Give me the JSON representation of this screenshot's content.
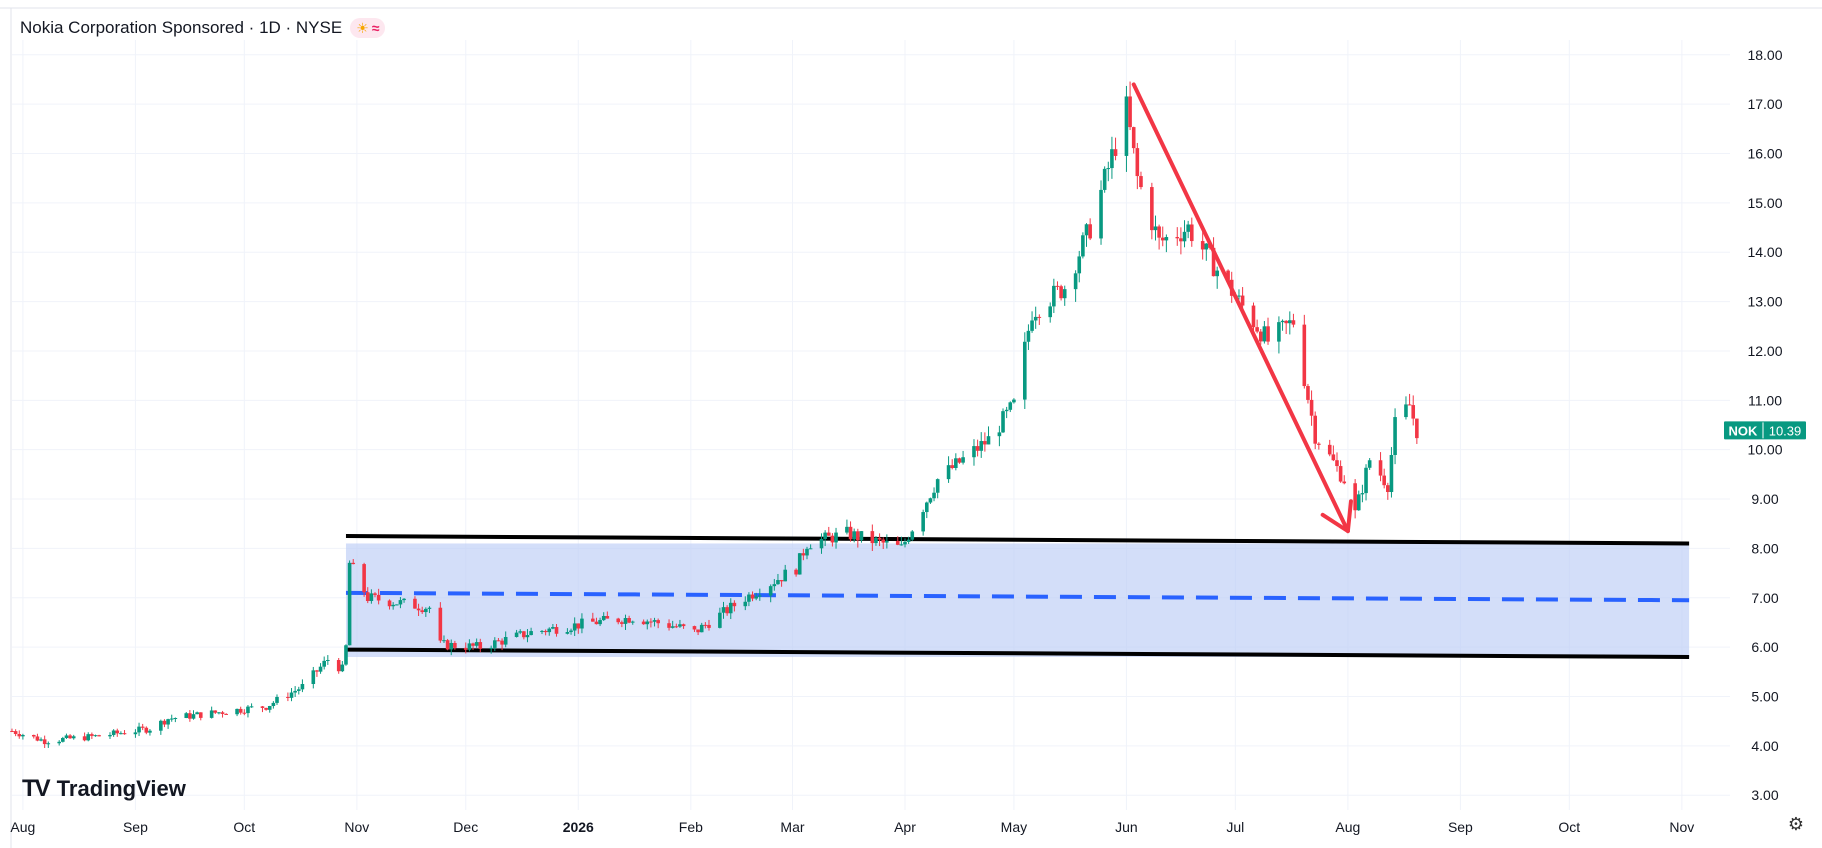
{
  "header": {
    "title": "Nokia Corporation Sponsored · 1D · NYSE",
    "icons": [
      "sun-icon",
      "wave-icon"
    ]
  },
  "branding": {
    "logo_mark": "TV",
    "logo_text": "TradingView"
  },
  "price_tag": {
    "symbol": "NOK",
    "value": "10.39",
    "color": "#089981"
  },
  "colors": {
    "up": "#089981",
    "down": "#f23645",
    "range_fill": "#bbccf6",
    "mid_line": "#2962ff",
    "arrow": "#f23645",
    "grid": "#f0f3fa",
    "bound_line": "#000000"
  },
  "chart_data": {
    "type": "candlestick",
    "title": "Nokia Corporation Sponsored · 1D · NYSE",
    "x_axis": {
      "type": "date",
      "range": [
        "2025-07-29",
        "2026-11-06"
      ],
      "tick_labels": [
        {
          "label": "Aug",
          "date": "2025-08-01"
        },
        {
          "label": "Sep",
          "date": "2025-09-01"
        },
        {
          "label": "Oct",
          "date": "2025-10-01"
        },
        {
          "label": "Nov",
          "date": "2025-11-01"
        },
        {
          "label": "Dec",
          "date": "2025-12-01"
        },
        {
          "label": "2026",
          "date": "2026-01-01",
          "bold": true
        },
        {
          "label": "Feb",
          "date": "2026-02-01"
        },
        {
          "label": "Mar",
          "date": "2026-03-01"
        },
        {
          "label": "Apr",
          "date": "2026-04-01"
        },
        {
          "label": "May",
          "date": "2026-05-01"
        },
        {
          "label": "Jun",
          "date": "2026-06-01"
        },
        {
          "label": "Jul",
          "date": "2026-07-01"
        },
        {
          "label": "Aug",
          "date": "2026-08-01"
        },
        {
          "label": "Sep",
          "date": "2026-09-01"
        },
        {
          "label": "Oct",
          "date": "2026-10-01"
        },
        {
          "label": "Nov",
          "date": "2026-11-01"
        }
      ]
    },
    "y_axis": {
      "range": [
        2.7,
        18.3
      ],
      "tick_labels": [
        "3.00",
        "4.00",
        "5.00",
        "6.00",
        "7.00",
        "8.00",
        "9.00",
        "10.00",
        "11.00",
        "12.00",
        "13.00",
        "14.00",
        "15.00",
        "16.00",
        "17.00",
        "18.00"
      ]
    },
    "grid": true,
    "last_price": 10.39,
    "series": [
      {
        "waypoints": [
          [
            "2025-07-29",
            4.3
          ],
          [
            "2025-08-07",
            4.1
          ],
          [
            "2025-08-22",
            4.2
          ],
          [
            "2025-09-05",
            4.35
          ],
          [
            "2025-09-10",
            4.55
          ],
          [
            "2025-09-26",
            4.7
          ],
          [
            "2025-10-07",
            4.8
          ],
          [
            "2025-10-17",
            5.2
          ],
          [
            "2025-10-24",
            5.75
          ],
          [
            "2025-10-28",
            5.55
          ],
          [
            "2025-10-29",
            6.0
          ],
          [
            "2025-10-30",
            7.7
          ],
          [
            "2025-11-04",
            7.0
          ],
          [
            "2025-11-21",
            6.8
          ],
          [
            "2025-11-24",
            6.05
          ],
          [
            "2025-12-05",
            6.0
          ],
          [
            "2025-12-19",
            6.3
          ],
          [
            "2026-01-05",
            6.5
          ],
          [
            "2026-01-16",
            6.6
          ],
          [
            "2026-01-29",
            6.4
          ],
          [
            "2026-02-02",
            6.3
          ],
          [
            "2026-02-16",
            7.0
          ],
          [
            "2026-03-02",
            7.6
          ],
          [
            "2026-03-05",
            8.1
          ],
          [
            "2026-03-16",
            8.3
          ],
          [
            "2026-03-31",
            8.0
          ],
          [
            "2026-04-10",
            9.4
          ],
          [
            "2026-04-24",
            10.2
          ],
          [
            "2026-05-01",
            10.9
          ],
          [
            "2026-05-06",
            12.8
          ],
          [
            "2026-05-15",
            13.3
          ],
          [
            "2026-05-22",
            14.5
          ],
          [
            "2026-06-01",
            16.9
          ],
          [
            "2026-06-04",
            15.5
          ],
          [
            "2026-06-10",
            14.2
          ],
          [
            "2026-06-18",
            14.5
          ],
          [
            "2026-07-02",
            13.0
          ],
          [
            "2026-07-10",
            12.2
          ],
          [
            "2026-07-17",
            12.6
          ],
          [
            "2026-07-23",
            10.3
          ],
          [
            "2026-07-31",
            9.4
          ],
          [
            "2026-08-03",
            8.7
          ],
          [
            "2026-08-07",
            9.8
          ],
          [
            "2026-08-12",
            9.3
          ],
          [
            "2026-08-14",
            10.5
          ],
          [
            "2026-08-18",
            10.9
          ],
          [
            "2026-08-20",
            10.39
          ]
        ]
      }
    ],
    "annotations": [
      {
        "type": "rectangle",
        "date_start": "2025-10-29",
        "date_end": "2026-11-03",
        "price_top": 8.1,
        "price_bottom": 5.8
      },
      {
        "type": "line",
        "style": "solid",
        "from": [
          "2025-10-29",
          8.25
        ],
        "to": [
          "2026-11-03",
          8.1
        ]
      },
      {
        "type": "line",
        "style": "solid",
        "from": [
          "2025-10-29",
          5.95
        ],
        "to": [
          "2026-11-03",
          5.8
        ]
      },
      {
        "type": "line",
        "style": "dashed",
        "from": [
          "2025-10-29",
          7.1
        ],
        "to": [
          "2026-11-03",
          6.95
        ]
      },
      {
        "type": "arrow",
        "from": [
          "2026-06-03",
          17.4
        ],
        "to": [
          "2026-08-01",
          8.35
        ]
      }
    ]
  }
}
